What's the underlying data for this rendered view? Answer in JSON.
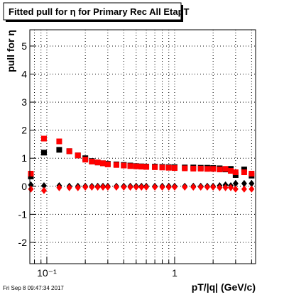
{
  "chart_data": {
    "type": "scatter",
    "title": "Fitted pull for η for Primary Rec All EtapT",
    "x_label": "pT/|q| (GeV/c)",
    "y_label": "pull for  η",
    "footer": "Fri Sep  8 09:47:34 2017",
    "log_x": true,
    "xlim": [
      0.0736,
      4.3
    ],
    "ylim": [
      -2.76,
      5.58
    ],
    "xticks": [
      {
        "value": 0.1,
        "label": "10⁻¹"
      },
      1
    ],
    "x_minor_grid": [
      0.08,
      0.09,
      0.2,
      0.3,
      0.4,
      0.5,
      0.6,
      0.7,
      0.8,
      0.9,
      2,
      3,
      4
    ],
    "yticks": [
      -2,
      -1,
      0,
      1,
      2,
      3,
      4,
      5
    ],
    "grid": true,
    "x": [
      0.075,
      0.095,
      0.125,
      0.15,
      0.175,
      0.2,
      0.225,
      0.25,
      0.275,
      0.3,
      0.35,
      0.4,
      0.45,
      0.5,
      0.55,
      0.6,
      0.7,
      0.8,
      0.9,
      1.0,
      1.2,
      1.4,
      1.6,
      1.8,
      2.0,
      2.25,
      2.5,
      2.75,
      3.0,
      3.5,
      4.0
    ],
    "series": [
      {
        "marker": "square",
        "color": "#000000",
        "values": [
          0.35,
          1.2,
          1.3,
          1.25,
          1.1,
          1.0,
          0.9,
          0.85,
          0.82,
          0.8,
          0.78,
          0.76,
          0.74,
          0.72,
          0.71,
          0.7,
          0.7,
          0.69,
          0.68,
          0.68,
          0.67,
          0.67,
          0.66,
          0.66,
          0.65,
          0.64,
          0.6,
          0.62,
          0.4,
          0.6,
          0.38
        ]
      },
      {
        "marker": "square",
        "color": "#ff0000",
        "values": [
          0.45,
          1.7,
          1.6,
          1.25,
          1.1,
          0.95,
          0.88,
          0.85,
          0.82,
          0.78,
          0.76,
          0.74,
          0.72,
          0.71,
          0.7,
          0.69,
          0.68,
          0.67,
          0.66,
          0.65,
          0.64,
          0.63,
          0.63,
          0.62,
          0.62,
          0.6,
          0.62,
          0.55,
          0.5,
          0.5,
          0.45
        ]
      },
      {
        "marker": "diamond",
        "color": "#000000",
        "values": [
          0.05,
          0.02,
          0.02,
          0.0,
          0.0,
          0.0,
          0.0,
          0.0,
          0.0,
          0.0,
          0.0,
          0.0,
          0.0,
          0.0,
          0.0,
          0.0,
          0.0,
          0.0,
          0.0,
          0.0,
          0.0,
          0.0,
          0.0,
          0.0,
          0.0,
          0.02,
          0.05,
          0.02,
          0.1,
          0.1,
          0.1
        ]
      },
      {
        "marker": "diamond",
        "color": "#ff0000",
        "values": [
          -0.1,
          -0.15,
          -0.05,
          -0.05,
          -0.05,
          -0.03,
          -0.03,
          -0.03,
          -0.03,
          -0.03,
          -0.03,
          -0.03,
          -0.03,
          -0.03,
          -0.03,
          -0.03,
          -0.03,
          -0.03,
          -0.03,
          -0.03,
          -0.03,
          -0.03,
          -0.03,
          -0.03,
          -0.03,
          -0.05,
          -0.05,
          -0.05,
          -0.1,
          -0.1,
          -0.1
        ]
      }
    ]
  }
}
